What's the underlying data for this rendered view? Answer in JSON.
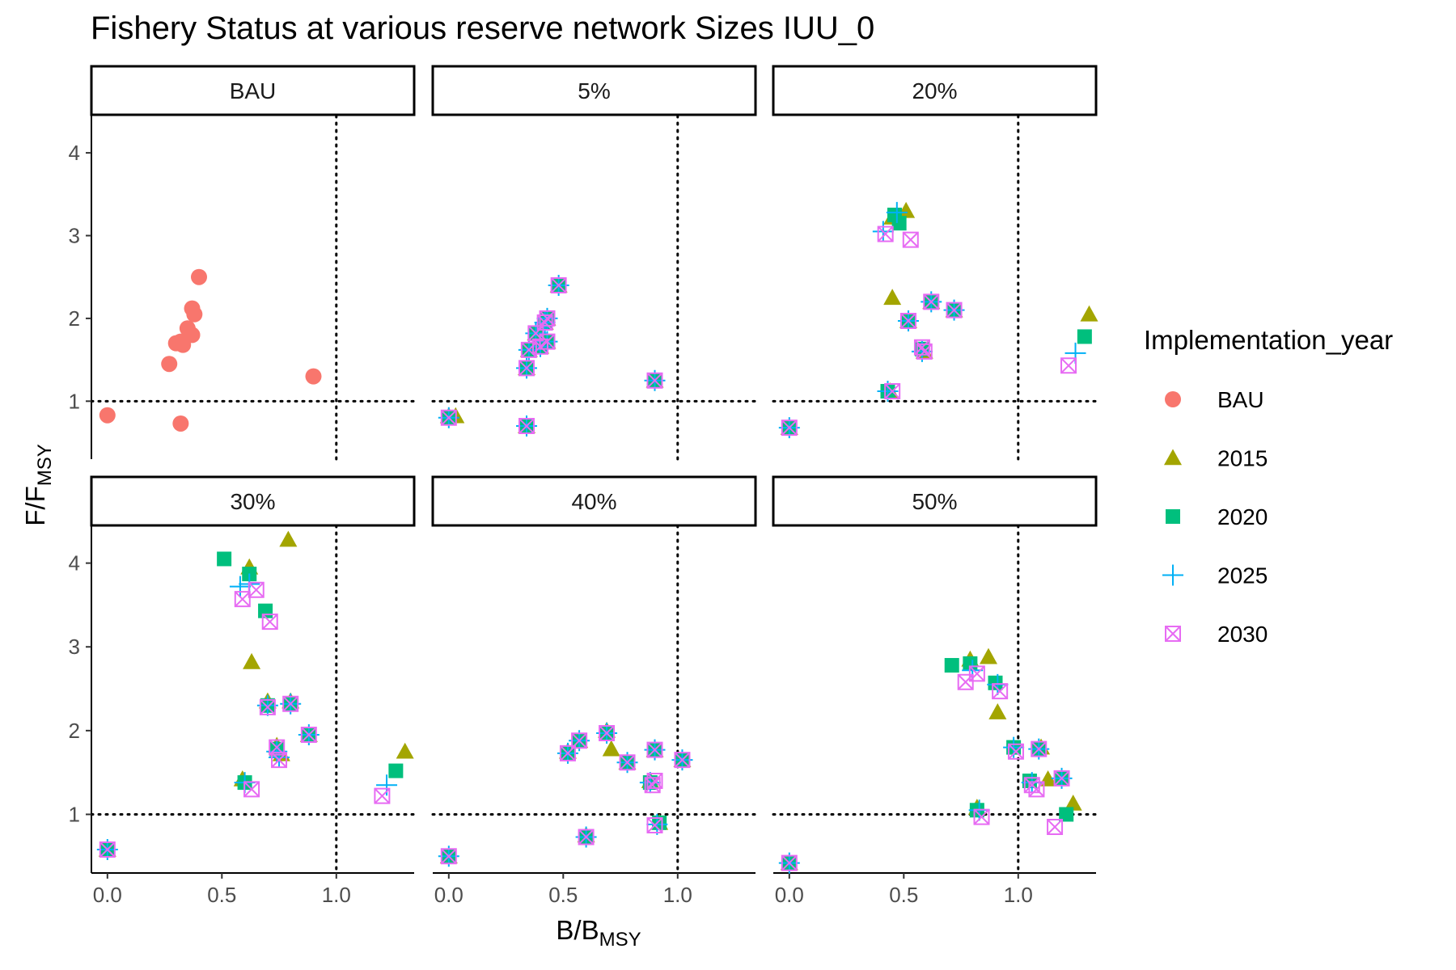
{
  "chart_data": {
    "type": "scatter",
    "title": "Fishery Status at various reserve network Sizes IUU_0",
    "xlabel": {
      "main": "B/B",
      "sub": "MSY"
    },
    "ylabel": {
      "main": "F/F",
      "sub": "MSY"
    },
    "xlim": [
      -0.07,
      1.34
    ],
    "ylim": [
      0.3,
      4.45
    ],
    "x_ticks": [
      0.0,
      0.5,
      1.0
    ],
    "x_tick_labels": [
      "0.0",
      "0.5",
      "1.0"
    ],
    "y_ticks": [
      1,
      2,
      3,
      4
    ],
    "y_tick_labels": [
      "1",
      "2",
      "3",
      "4"
    ],
    "reference_lines": {
      "x": 1.0,
      "y": 1.0,
      "style": "dotted"
    },
    "grid": false,
    "legend": {
      "title": "Implementation_year",
      "position": "right",
      "entries": [
        {
          "label": "BAU",
          "color": "#F8766D",
          "shape": "circle"
        },
        {
          "label": "2015",
          "color": "#A3A500",
          "shape": "triangle"
        },
        {
          "label": "2020",
          "color": "#00BF7D",
          "shape": "square"
        },
        {
          "label": "2025",
          "color": "#00B0F6",
          "shape": "plus"
        },
        {
          "label": "2030",
          "color": "#E76BF3",
          "shape": "boxx"
        }
      ]
    },
    "facets": [
      {
        "label": "BAU",
        "series": [
          {
            "name": "BAU",
            "points": [
              [
                0.0,
                0.83
              ],
              [
                0.27,
                1.45
              ],
              [
                0.3,
                1.7
              ],
              [
                0.32,
                1.72
              ],
              [
                0.33,
                1.68
              ],
              [
                0.35,
                1.88
              ],
              [
                0.37,
                1.8
              ],
              [
                0.37,
                2.12
              ],
              [
                0.38,
                2.05
              ],
              [
                0.4,
                2.5
              ],
              [
                0.32,
                0.73
              ],
              [
                0.9,
                1.3
              ]
            ]
          }
        ]
      },
      {
        "label": "5%",
        "series": [
          {
            "name": "2015",
            "points": [
              [
                0.0,
                0.82
              ],
              [
                0.03,
                0.82
              ],
              [
                0.34,
                0.7
              ],
              [
                0.34,
                1.4
              ],
              [
                0.35,
                1.62
              ],
              [
                0.38,
                1.82
              ],
              [
                0.4,
                1.66
              ],
              [
                0.43,
                1.72
              ],
              [
                0.42,
                1.95
              ],
              [
                0.43,
                2.0
              ],
              [
                0.48,
                2.4
              ],
              [
                0.9,
                1.25
              ]
            ]
          },
          {
            "name": "2020",
            "points": [
              [
                0.0,
                0.8
              ],
              [
                0.34,
                0.7
              ],
              [
                0.34,
                1.4
              ],
              [
                0.35,
                1.62
              ],
              [
                0.38,
                1.82
              ],
              [
                0.4,
                1.66
              ],
              [
                0.43,
                1.72
              ],
              [
                0.42,
                1.95
              ],
              [
                0.43,
                2.0
              ],
              [
                0.48,
                2.4
              ],
              [
                0.9,
                1.25
              ]
            ]
          },
          {
            "name": "2025",
            "points": [
              [
                0.0,
                0.8
              ],
              [
                0.34,
                0.7
              ],
              [
                0.34,
                1.4
              ],
              [
                0.35,
                1.62
              ],
              [
                0.38,
                1.82
              ],
              [
                0.4,
                1.66
              ],
              [
                0.43,
                1.72
              ],
              [
                0.42,
                1.95
              ],
              [
                0.43,
                2.0
              ],
              [
                0.48,
                2.4
              ],
              [
                0.9,
                1.25
              ]
            ]
          },
          {
            "name": "2030",
            "points": [
              [
                0.0,
                0.8
              ],
              [
                0.34,
                0.7
              ],
              [
                0.34,
                1.4
              ],
              [
                0.35,
                1.62
              ],
              [
                0.38,
                1.82
              ],
              [
                0.4,
                1.66
              ],
              [
                0.43,
                1.72
              ],
              [
                0.42,
                1.95
              ],
              [
                0.43,
                2.0
              ],
              [
                0.48,
                2.4
              ],
              [
                0.9,
                1.25
              ]
            ]
          }
        ]
      },
      {
        "label": "20%",
        "series": [
          {
            "name": "2015",
            "points": [
              [
                0.0,
                0.68
              ],
              [
                0.44,
                1.12
              ],
              [
                0.45,
                2.25
              ],
              [
                0.51,
                3.3
              ],
              [
                0.45,
                3.22
              ],
              [
                0.52,
                1.97
              ],
              [
                0.59,
                1.6
              ],
              [
                0.62,
                2.2
              ],
              [
                0.72,
                2.1
              ],
              [
                1.31,
                2.05
              ]
            ]
          },
          {
            "name": "2020",
            "points": [
              [
                0.0,
                0.68
              ],
              [
                0.43,
                1.12
              ],
              [
                0.46,
                3.25
              ],
              [
                0.48,
                3.15
              ],
              [
                0.52,
                1.97
              ],
              [
                0.58,
                1.63
              ],
              [
                0.62,
                2.2
              ],
              [
                0.72,
                2.1
              ],
              [
                1.29,
                1.78
              ]
            ]
          },
          {
            "name": "2025",
            "points": [
              [
                0.0,
                0.68
              ],
              [
                0.43,
                1.12
              ],
              [
                0.41,
                3.05
              ],
              [
                0.47,
                3.28
              ],
              [
                0.52,
                1.97
              ],
              [
                0.58,
                1.6
              ],
              [
                0.62,
                2.2
              ],
              [
                0.72,
                2.1
              ],
              [
                1.25,
                1.58
              ]
            ]
          },
          {
            "name": "2030",
            "points": [
              [
                0.0,
                0.68
              ],
              [
                0.45,
                1.12
              ],
              [
                0.42,
                3.02
              ],
              [
                0.53,
                2.95
              ],
              [
                0.52,
                1.97
              ],
              [
                0.58,
                1.65
              ],
              [
                0.59,
                1.6
              ],
              [
                0.62,
                2.2
              ],
              [
                0.72,
                2.1
              ],
              [
                1.22,
                1.43
              ]
            ]
          }
        ]
      },
      {
        "label": "30%",
        "series": [
          {
            "name": "2015",
            "points": [
              [
                0.0,
                0.58
              ],
              [
                0.59,
                1.42
              ],
              [
                0.62,
                3.95
              ],
              [
                0.63,
                2.82
              ],
              [
                0.7,
                2.35
              ],
              [
                0.79,
                4.28
              ],
              [
                0.8,
                2.35
              ],
              [
                0.74,
                1.82
              ],
              [
                0.76,
                1.72
              ],
              [
                0.88,
                1.95
              ],
              [
                1.3,
                1.75
              ]
            ]
          },
          {
            "name": "2020",
            "points": [
              [
                0.0,
                0.58
              ],
              [
                0.51,
                4.05
              ],
              [
                0.62,
                3.87
              ],
              [
                0.69,
                3.43
              ],
              [
                0.7,
                2.3
              ],
              [
                0.8,
                2.32
              ],
              [
                0.6,
                1.38
              ],
              [
                0.74,
                1.78
              ],
              [
                0.88,
                1.95
              ],
              [
                1.26,
                1.52
              ]
            ]
          },
          {
            "name": "2025",
            "points": [
              [
                0.0,
                0.58
              ],
              [
                0.58,
                3.72
              ],
              [
                0.62,
                3.75
              ],
              [
                0.7,
                2.3
              ],
              [
                0.8,
                2.32
              ],
              [
                0.6,
                1.38
              ],
              [
                0.74,
                1.75
              ],
              [
                0.75,
                1.68
              ],
              [
                0.88,
                1.95
              ],
              [
                1.22,
                1.35
              ]
            ]
          },
          {
            "name": "2030",
            "points": [
              [
                0.0,
                0.58
              ],
              [
                0.59,
                3.57
              ],
              [
                0.65,
                3.68
              ],
              [
                0.71,
                3.3
              ],
              [
                0.7,
                2.28
              ],
              [
                0.8,
                2.32
              ],
              [
                0.63,
                1.3
              ],
              [
                0.74,
                1.8
              ],
              [
                0.75,
                1.65
              ],
              [
                0.88,
                1.95
              ],
              [
                1.2,
                1.22
              ]
            ]
          }
        ]
      },
      {
        "label": "40%",
        "series": [
          {
            "name": "2015",
            "points": [
              [
                0.0,
                0.5
              ],
              [
                0.6,
                0.75
              ],
              [
                0.52,
                1.75
              ],
              [
                0.57,
                1.88
              ],
              [
                0.69,
                2.0
              ],
              [
                0.71,
                1.78
              ],
              [
                0.78,
                1.62
              ],
              [
                0.88,
                1.4
              ],
              [
                0.9,
                1.77
              ],
              [
                0.92,
                0.9
              ],
              [
                1.02,
                1.65
              ]
            ]
          },
          {
            "name": "2020",
            "points": [
              [
                0.0,
                0.5
              ],
              [
                0.6,
                0.73
              ],
              [
                0.52,
                1.73
              ],
              [
                0.57,
                1.88
              ],
              [
                0.69,
                1.97
              ],
              [
                0.78,
                1.62
              ],
              [
                0.88,
                1.38
              ],
              [
                0.9,
                1.77
              ],
              [
                0.92,
                0.9
              ],
              [
                1.02,
                1.65
              ]
            ]
          },
          {
            "name": "2025",
            "points": [
              [
                0.0,
                0.5
              ],
              [
                0.6,
                0.73
              ],
              [
                0.52,
                1.73
              ],
              [
                0.57,
                1.88
              ],
              [
                0.69,
                1.97
              ],
              [
                0.78,
                1.62
              ],
              [
                0.88,
                1.38
              ],
              [
                0.9,
                1.77
              ],
              [
                0.91,
                0.88
              ],
              [
                1.02,
                1.65
              ]
            ]
          },
          {
            "name": "2030",
            "points": [
              [
                0.0,
                0.5
              ],
              [
                0.6,
                0.73
              ],
              [
                0.52,
                1.73
              ],
              [
                0.57,
                1.88
              ],
              [
                0.69,
                1.97
              ],
              [
                0.78,
                1.62
              ],
              [
                0.89,
                1.35
              ],
              [
                0.9,
                1.4
              ],
              [
                0.9,
                1.77
              ],
              [
                0.9,
                0.87
              ],
              [
                1.02,
                1.65
              ]
            ]
          }
        ]
      },
      {
        "label": "50%",
        "series": [
          {
            "name": "2015",
            "points": [
              [
                0.0,
                0.42
              ],
              [
                0.79,
                2.85
              ],
              [
                0.82,
                1.08
              ],
              [
                0.87,
                2.88
              ],
              [
                0.91,
                2.22
              ],
              [
                1.1,
                1.8
              ],
              [
                1.13,
                1.42
              ],
              [
                1.24,
                1.13
              ]
            ]
          },
          {
            "name": "2020",
            "points": [
              [
                0.0,
                0.42
              ],
              [
                0.71,
                2.78
              ],
              [
                0.79,
                2.8
              ],
              [
                0.82,
                1.05
              ],
              [
                0.9,
                2.57
              ],
              [
                0.98,
                1.8
              ],
              [
                1.05,
                1.4
              ],
              [
                1.09,
                1.78
              ],
              [
                1.19,
                1.43
              ],
              [
                1.21,
                1.0
              ]
            ]
          },
          {
            "name": "2025",
            "points": [
              [
                0.0,
                0.42
              ],
              [
                0.8,
                2.72
              ],
              [
                0.83,
                1.05
              ],
              [
                0.91,
                2.55
              ],
              [
                0.98,
                1.8
              ],
              [
                1.06,
                1.38
              ],
              [
                1.09,
                1.78
              ],
              [
                1.19,
                1.43
              ]
            ]
          },
          {
            "name": "2030",
            "points": [
              [
                0.0,
                0.42
              ],
              [
                0.77,
                2.58
              ],
              [
                0.82,
                2.68
              ],
              [
                0.84,
                0.97
              ],
              [
                0.92,
                2.47
              ],
              [
                0.99,
                1.75
              ],
              [
                1.06,
                1.35
              ],
              [
                1.08,
                1.3
              ],
              [
                1.09,
                1.78
              ],
              [
                1.19,
                1.43
              ],
              [
                1.16,
                0.85
              ]
            ]
          }
        ]
      }
    ]
  }
}
